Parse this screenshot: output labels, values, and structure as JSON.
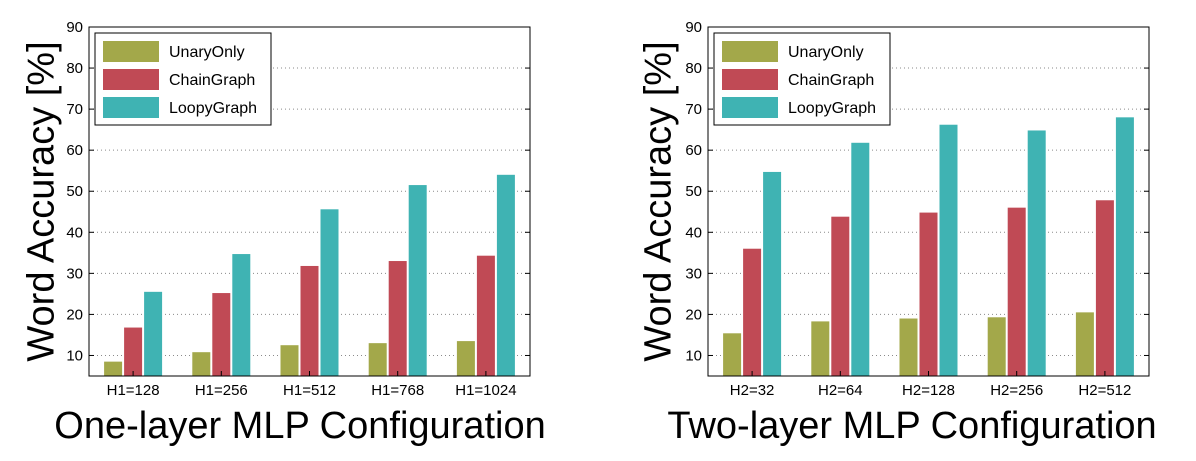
{
  "chart_data": [
    {
      "type": "bar",
      "xlabel": "One-layer MLP Configuration",
      "ylabel": "Word Accuracy [%]",
      "ylim": [
        5,
        90
      ],
      "yticks": [
        10,
        20,
        30,
        40,
        50,
        60,
        70,
        80,
        90
      ],
      "grid": true,
      "legend_position": "top-left",
      "categories": [
        "H1=128",
        "H1=256",
        "H1=512",
        "H1=768",
        "H1=1024"
      ],
      "series": [
        {
          "name": "UnaryOnly",
          "color": "#a3a84a",
          "values": [
            8.5,
            10.8,
            12.5,
            13,
            13.5
          ]
        },
        {
          "name": "ChainGraph",
          "color": "#c04a55",
          "values": [
            16.8,
            25.2,
            31.8,
            33,
            34.3
          ]
        },
        {
          "name": "LoopyGraph",
          "color": "#3fb3b3",
          "values": [
            25.5,
            34.7,
            45.6,
            51.5,
            54
          ]
        }
      ]
    },
    {
      "type": "bar",
      "xlabel": "Two-layer MLP Configuration",
      "ylabel": "Word Accuracy [%]",
      "ylim": [
        5,
        90
      ],
      "yticks": [
        10,
        20,
        30,
        40,
        50,
        60,
        70,
        80,
        90
      ],
      "grid": true,
      "legend_position": "top-left",
      "categories": [
        "H2=32",
        "H2=64",
        "H2=128",
        "H2=256",
        "H2=512"
      ],
      "series": [
        {
          "name": "UnaryOnly",
          "color": "#a3a84a",
          "values": [
            15.4,
            18.3,
            19,
            19.3,
            20.5
          ]
        },
        {
          "name": "ChainGraph",
          "color": "#c04a55",
          "values": [
            36,
            43.8,
            44.8,
            46,
            47.8
          ]
        },
        {
          "name": "LoopyGraph",
          "color": "#3fb3b3",
          "values": [
            54.7,
            61.8,
            66.2,
            64.8,
            68
          ]
        }
      ]
    }
  ]
}
